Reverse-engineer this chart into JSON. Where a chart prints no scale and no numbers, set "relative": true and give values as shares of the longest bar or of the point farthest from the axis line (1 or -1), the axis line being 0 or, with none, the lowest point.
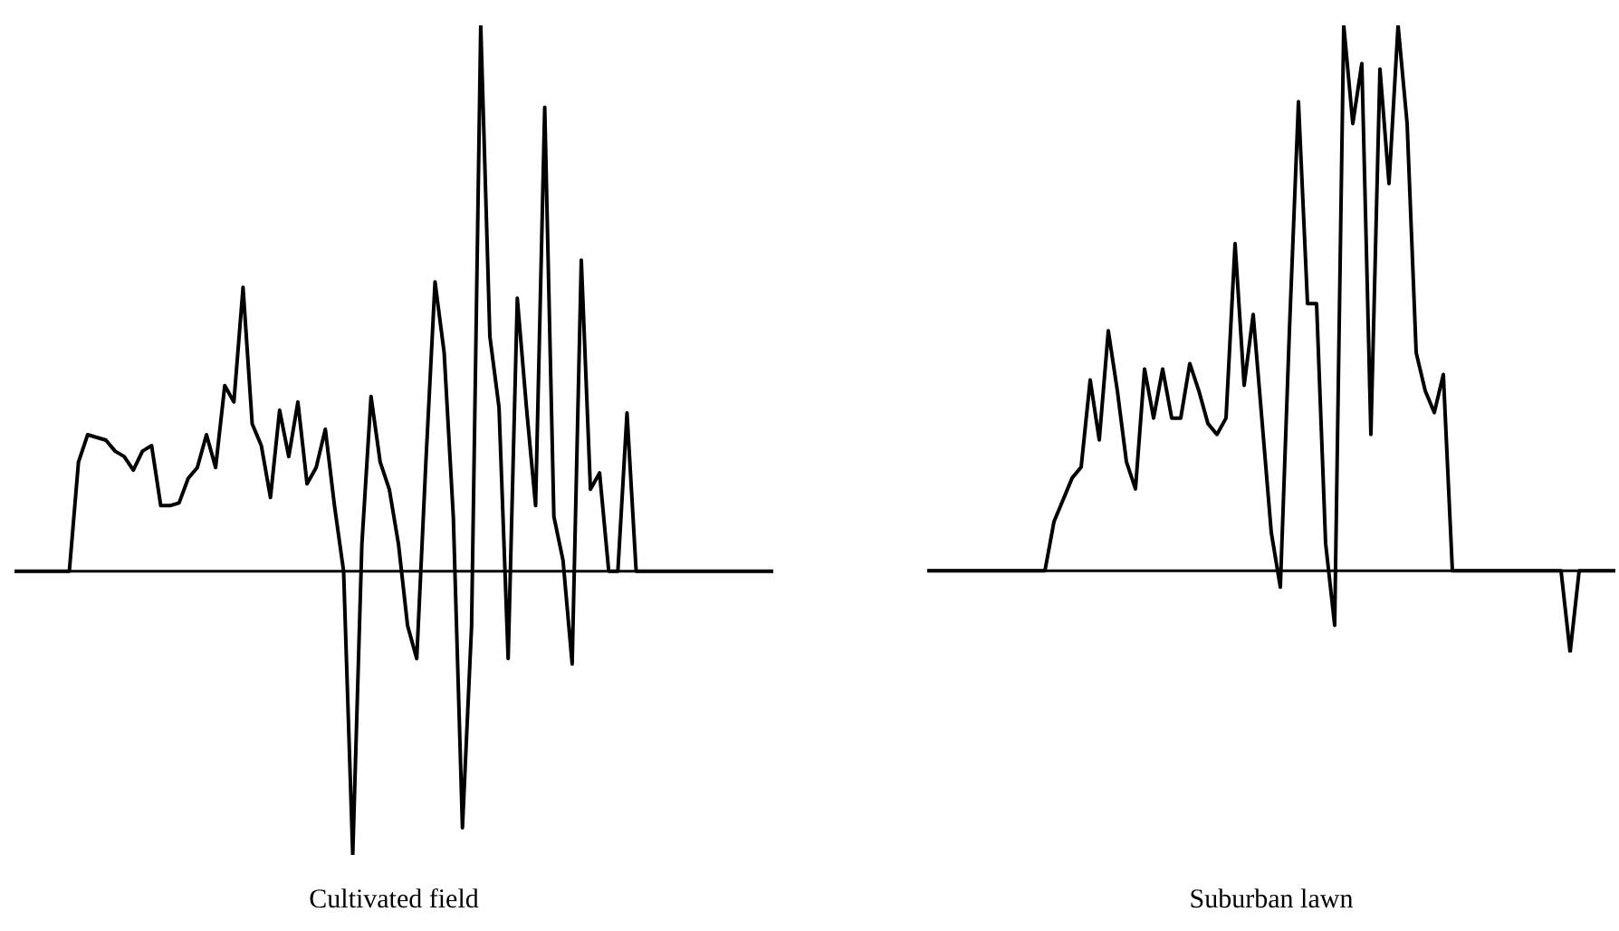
{
  "chart_data": [
    {
      "type": "line",
      "title": "Cultivated field",
      "relative": true,
      "color": "#000000",
      "marker": "none",
      "categories": [
        null,
        null,
        null,
        null,
        null,
        null,
        null,
        null,
        null,
        null,
        null,
        null,
        null,
        null,
        null,
        null,
        null,
        null,
        null,
        null,
        null,
        null,
        null,
        null,
        null,
        null,
        null,
        null,
        null,
        null,
        null,
        null,
        null,
        null,
        null,
        null,
        null,
        null,
        null,
        null,
        null,
        null,
        null,
        null,
        null,
        null,
        null,
        null,
        null,
        null,
        null,
        null,
        null,
        null,
        null,
        null,
        null,
        null,
        null,
        null,
        null,
        null,
        null,
        null,
        null,
        null,
        null,
        null,
        null,
        null,
        null,
        null,
        null,
        null,
        null,
        null,
        null,
        null,
        null,
        null,
        null,
        null,
        null,
        null
      ],
      "values": [
        0,
        0,
        0,
        0,
        0,
        0,
        0,
        0.2,
        0.25,
        0.245,
        0.24,
        0.22,
        0.21,
        0.185,
        0.22,
        0.23,
        0.12,
        0.12,
        0.125,
        0.17,
        0.19,
        0.25,
        0.19,
        0.34,
        0.31,
        0.52,
        0.27,
        0.23,
        0.135,
        0.295,
        0.21,
        0.31,
        0.16,
        0.19,
        0.26,
        0.12,
        0,
        -0.52,
        0.05,
        0.32,
        0.2,
        0.15,
        0.05,
        -0.1,
        -0.16,
        0.2,
        0.53,
        0.4,
        0.1,
        -0.47,
        -0.1,
        1,
        0.43,
        0.3,
        -0.16,
        0.5,
        0.3,
        0.12,
        0.85,
        0.1,
        0.02,
        -0.17,
        0.57,
        0.15,
        0.18,
        0,
        0,
        0.29,
        0,
        0,
        0,
        0,
        0,
        0,
        0,
        0,
        0,
        0,
        0,
        0,
        0,
        0,
        0,
        0
      ]
    },
    {
      "type": "line",
      "title": "Suburban lawn",
      "relative": true,
      "color": "#000000",
      "marker": "none",
      "categories": [
        null,
        null,
        null,
        null,
        null,
        null,
        null,
        null,
        null,
        null,
        null,
        null,
        null,
        null,
        null,
        null,
        null,
        null,
        null,
        null,
        null,
        null,
        null,
        null,
        null,
        null,
        null,
        null,
        null,
        null,
        null,
        null,
        null,
        null,
        null,
        null,
        null,
        null,
        null,
        null,
        null,
        null,
        null,
        null,
        null,
        null,
        null,
        null,
        null,
        null,
        null,
        null,
        null,
        null,
        null,
        null,
        null,
        null,
        null,
        null,
        null,
        null,
        null,
        null,
        null,
        null,
        null,
        null,
        null,
        null,
        null,
        null,
        null,
        null,
        null,
        null,
        null
      ],
      "values": [
        0,
        0,
        0,
        0,
        0,
        0,
        0,
        0,
        0,
        0,
        0,
        0,
        0,
        0,
        0.09,
        0.13,
        0.17,
        0.19,
        0.35,
        0.24,
        0.44,
        0.33,
        0.2,
        0.15,
        0.37,
        0.28,
        0.37,
        0.28,
        0.28,
        0.38,
        0.33,
        0.27,
        0.25,
        0.28,
        0.6,
        0.34,
        0.47,
        0.27,
        0.07,
        -0.03,
        0.44,
        0.86,
        0.49,
        0.49,
        0.05,
        -0.1,
        1,
        0.82,
        0.93,
        0.25,
        0.92,
        0.71,
        1,
        0.82,
        0.4,
        0.33,
        0.29,
        0.36,
        0,
        0,
        0,
        0,
        0,
        0,
        0,
        0,
        0,
        0,
        0,
        0,
        0,
        -0.15,
        0,
        0,
        0,
        0,
        0
      ]
    }
  ]
}
